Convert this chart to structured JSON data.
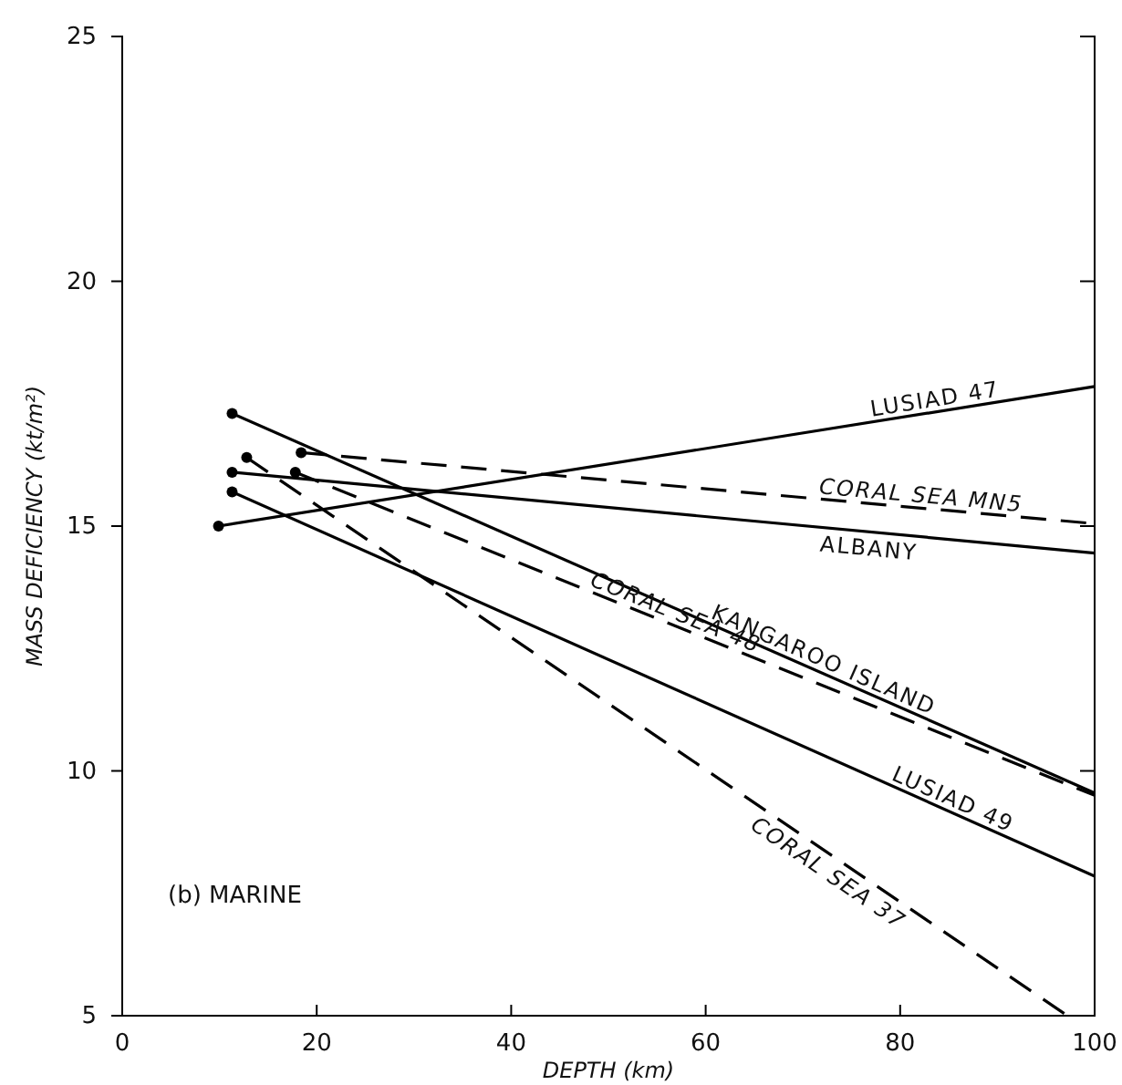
{
  "chart_data": {
    "type": "line",
    "xlabel": "DEPTH (km)",
    "ylabel": "MASS DEFICIENCY (kt/m²)",
    "xlim": [
      0,
      100
    ],
    "ylim": [
      5,
      25
    ],
    "xticks": [
      0,
      20,
      40,
      60,
      80,
      100
    ],
    "yticks": [
      5,
      10,
      15,
      20,
      25
    ],
    "grid": false,
    "marker": "circle",
    "annotations": [
      "(b) MARINE"
    ],
    "series": [
      {
        "name": "LUSIAD 47",
        "color": "#000000",
        "line_style": "solid",
        "x": [
          9.9,
          100
        ],
        "values": [
          15.0,
          17.85
        ]
      },
      {
        "name": "CORAL SEA MN5",
        "color": "#000000",
        "line_style": "dashed",
        "x": [
          18.4,
          100
        ],
        "values": [
          16.5,
          15.05
        ]
      },
      {
        "name": "ALBANY",
        "color": "#000000",
        "line_style": "solid",
        "x": [
          11.3,
          100
        ],
        "values": [
          16.1,
          14.45
        ]
      },
      {
        "name": "KANGAROO ISLAND",
        "color": "#000000",
        "line_style": "solid",
        "x": [
          11.3,
          100
        ],
        "values": [
          17.3,
          9.55
        ]
      },
      {
        "name": "CORAL SEA 48",
        "color": "#000000",
        "line_style": "dashed",
        "x": [
          17.8,
          100
        ],
        "values": [
          16.1,
          9.5
        ]
      },
      {
        "name": "LUSIAD 49",
        "color": "#000000",
        "line_style": "solid",
        "x": [
          11.3,
          100
        ],
        "values": [
          15.7,
          7.85
        ]
      },
      {
        "name": "CORAL SEA 37",
        "color": "#000000",
        "line_style": "dashed",
        "x": [
          12.8,
          97.2
        ],
        "values": [
          16.4,
          5
        ]
      }
    ]
  }
}
